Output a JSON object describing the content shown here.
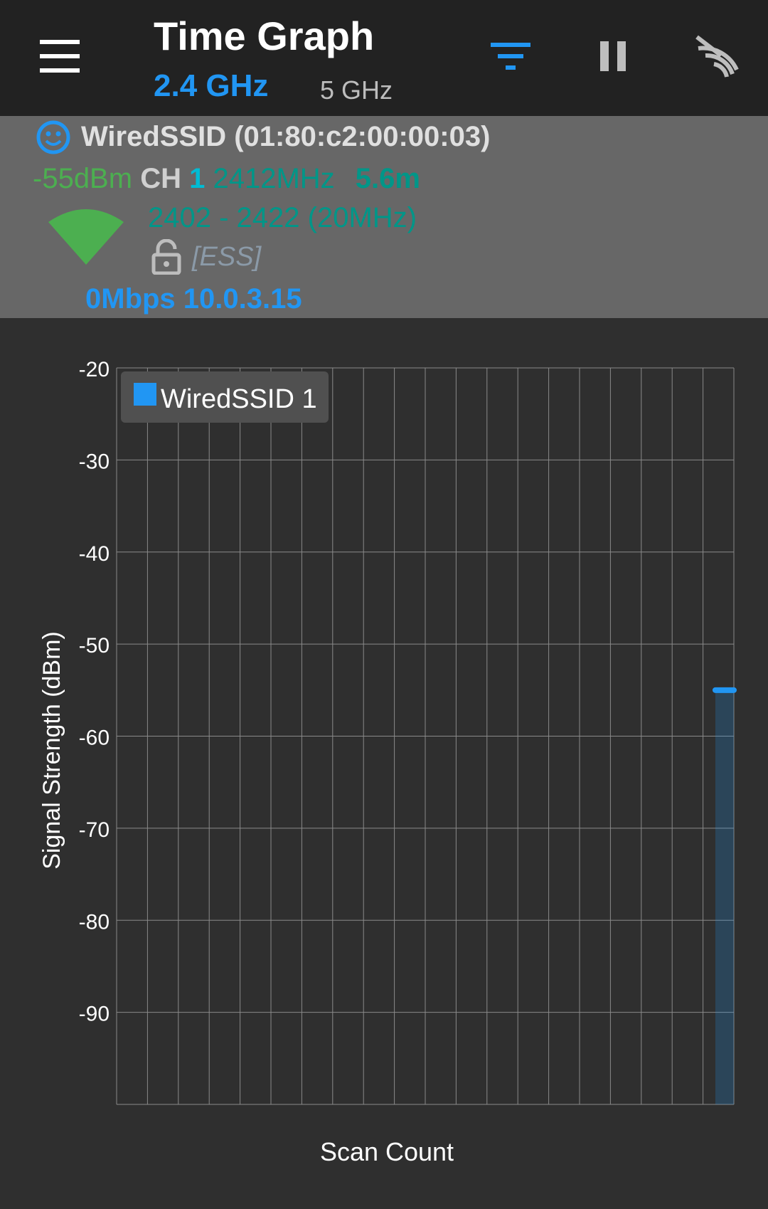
{
  "header": {
    "title": "Time Graph",
    "band_active": "2.4 GHz",
    "band_inactive": "5 GHz",
    "icons": {
      "menu": "hamburger-menu-icon",
      "filter": "filter-icon",
      "pause": "pause-icon",
      "wifi_off": "wifi-off-icon"
    }
  },
  "access_point": {
    "ssid_line": "WiredSSID (01:80:c2:00:00:03)",
    "level": "-55dBm",
    "channel_label": "CH",
    "channel": "1",
    "frequency": "2412MHz",
    "distance": "5.6m",
    "range": "2402 - 2422 (20MHz)",
    "capabilities": "[ESS]",
    "link_info": "0Mbps 10.0.3.15",
    "icons": {
      "status": "smiley-face-icon",
      "signal": "wifi-signal-wedge-icon",
      "security": "unlocked-padlock-icon"
    }
  },
  "colors": {
    "accent": "#2196f3",
    "signal_good": "#4caf50",
    "teal": "#009688",
    "cyan": "#00bcd4",
    "header_bg": "#222222",
    "panel_bg": "#676767",
    "chart_bg": "#2f2f2f"
  },
  "chart_data": {
    "type": "area",
    "title": "",
    "xlabel": "Scan Count",
    "ylabel": "Signal Strength (dBm)",
    "ylim": [
      -100,
      -20
    ],
    "yticks": [
      -20,
      -30,
      -40,
      -50,
      -60,
      -70,
      -80,
      -90
    ],
    "x_divisions": 20,
    "grid": true,
    "legend_position": "top-left",
    "series": [
      {
        "name": "WiredSSID 1",
        "color": "#2196f3",
        "points": [
          {
            "x": 19.4,
            "y": -55
          },
          {
            "x": 20,
            "y": -55
          }
        ]
      }
    ]
  }
}
